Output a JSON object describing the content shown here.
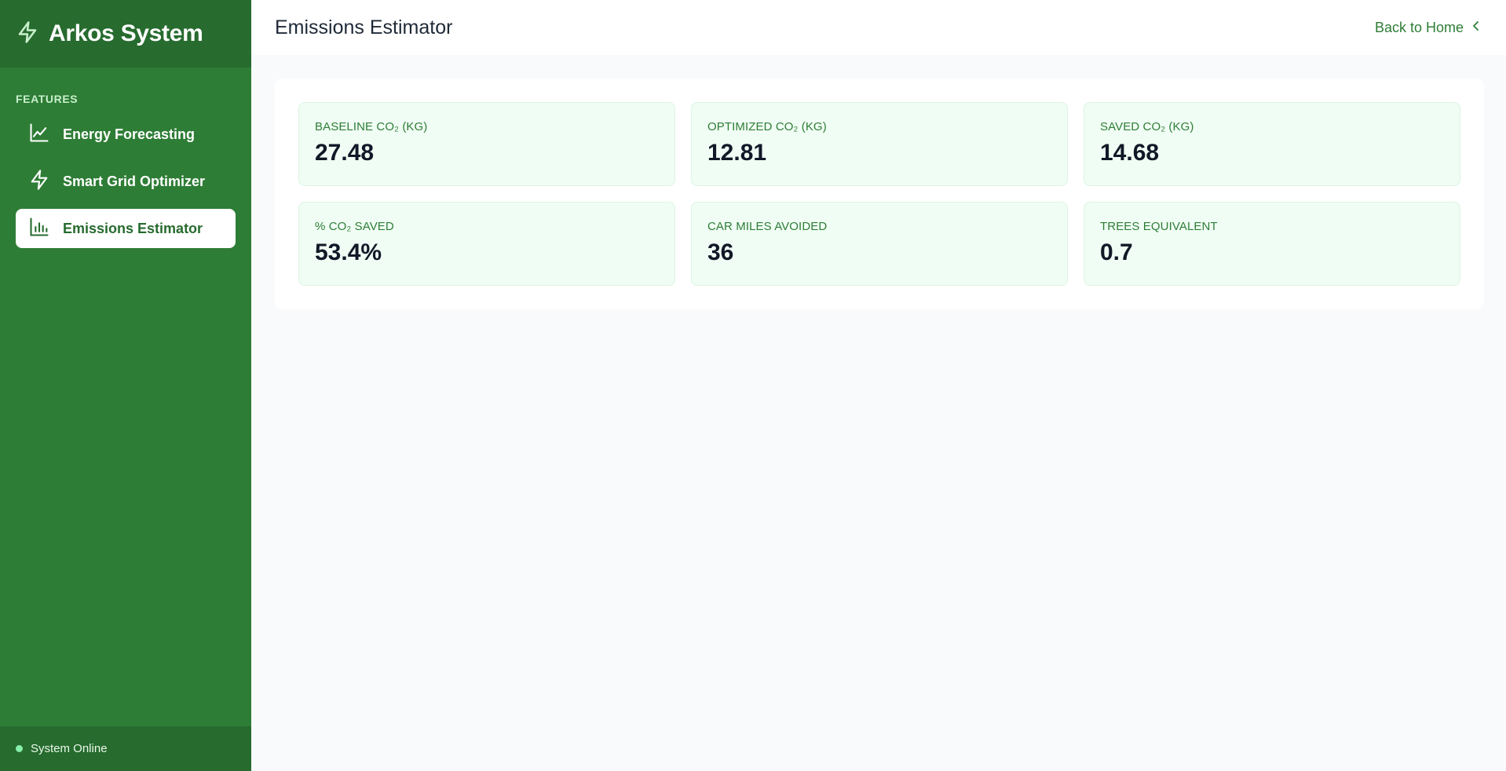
{
  "brand": {
    "name": "Arkos System",
    "icon": "bolt-icon"
  },
  "sidebar": {
    "section_label": "FEATURES",
    "items": [
      {
        "label": "Energy Forecasting",
        "icon": "line-chart-icon",
        "active": false
      },
      {
        "label": "Smart Grid Optimizer",
        "icon": "bolt-icon",
        "active": false
      },
      {
        "label": "Emissions Estimator",
        "icon": "bar-chart-icon",
        "active": true
      }
    ],
    "status": "System Online"
  },
  "header": {
    "title": "Emissions Estimator",
    "back_label": "Back to Home"
  },
  "stats": [
    {
      "label": "BASELINE CO₂ (KG)",
      "value": "27.48"
    },
    {
      "label": "OPTIMIZED CO₂ (KG)",
      "value": "12.81"
    },
    {
      "label": "SAVED CO₂ (KG)",
      "value": "14.68"
    },
    {
      "label": "% CO₂ SAVED",
      "value": "53.4%"
    },
    {
      "label": "CAR MILES AVOIDED",
      "value": "36"
    },
    {
      "label": "TREES EQUIVALENT",
      "value": "0.7"
    }
  ],
  "colors": {
    "sidebar": "#2e7d36",
    "sidebar_dark": "#276b2f",
    "accent": "#2e7d36",
    "stat_bg": "#f0fdf4",
    "status_dot": "#86efac"
  }
}
